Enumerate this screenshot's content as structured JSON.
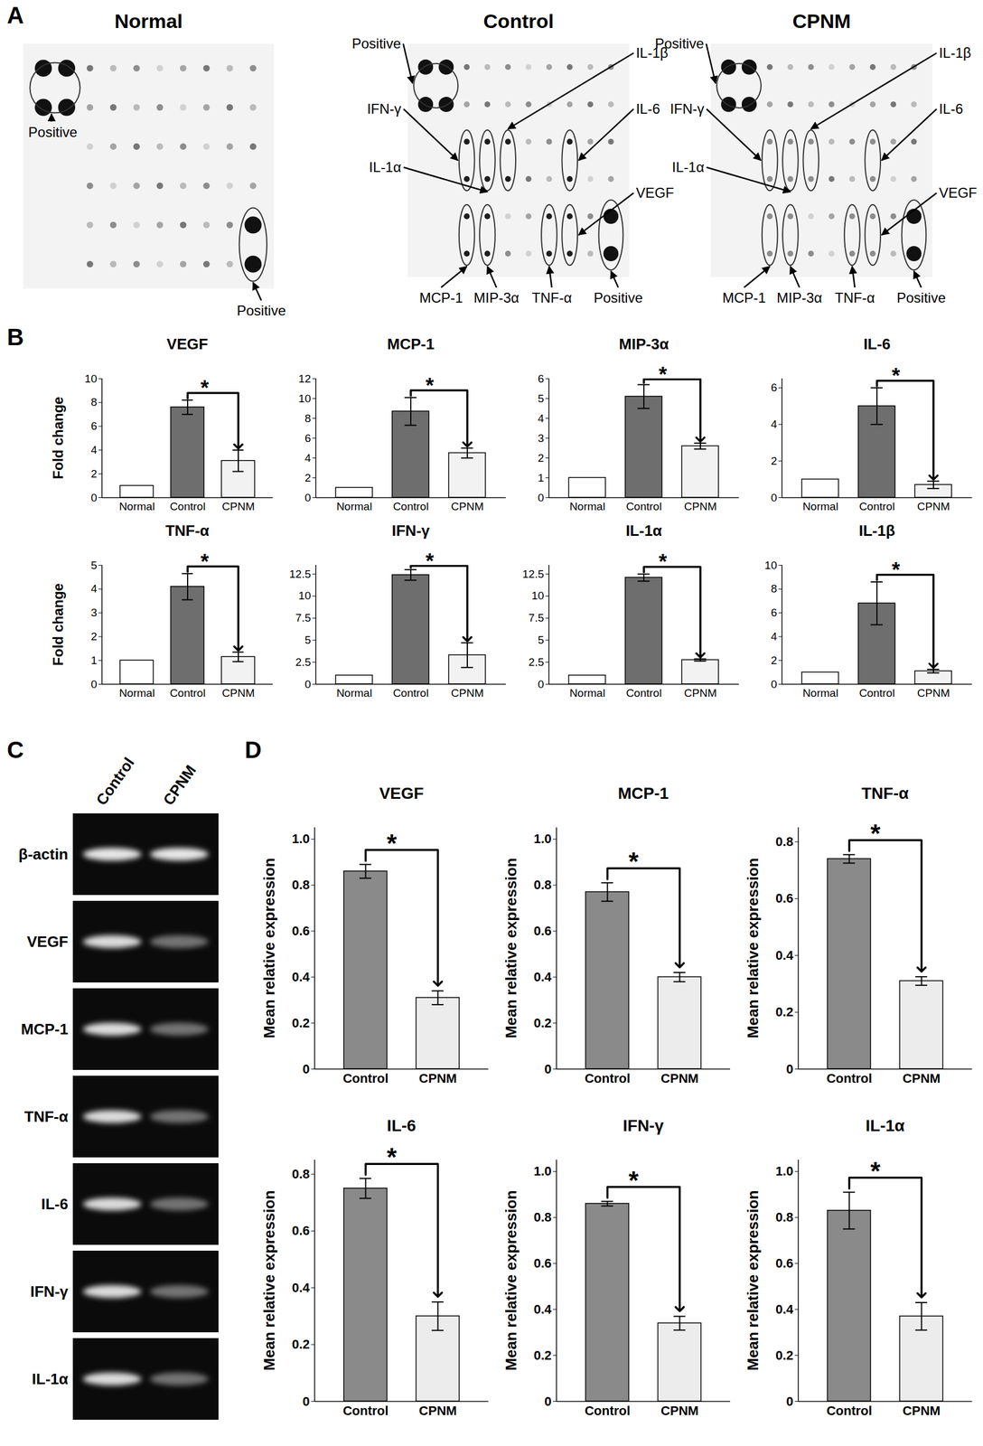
{
  "panel_labels": [
    "A",
    "B",
    "C",
    "D"
  ],
  "blots": [
    {
      "title": "Normal",
      "positive_label": "Positive",
      "targets": []
    },
    {
      "title": "Control",
      "positive_label": "Positive",
      "targets": [
        "IFN-γ",
        "IL-1α",
        "IL-1β",
        "IL-6",
        "VEGF",
        "MCP-1",
        "MIP-3α",
        "TNF-α"
      ]
    },
    {
      "title": "CPNM",
      "positive_label": "Positive",
      "targets": [
        "IFN-γ",
        "IL-1α",
        "IL-1β",
        "IL-6",
        "VEGF",
        "MCP-1",
        "MIP-3α",
        "TNF-α"
      ]
    }
  ],
  "gel": {
    "lanes": [
      "Control",
      "CPNM"
    ],
    "rows": [
      "β-actin",
      "VEGF",
      "MCP-1",
      "TNF-α",
      "IL-6",
      "IFN-γ",
      "IL-1α"
    ]
  },
  "chart_data": [
    {
      "type": "bar",
      "title": "VEGF",
      "y_label": "Fold change",
      "categories": [
        "Normal",
        "Control",
        "CPNM"
      ],
      "values": [
        1,
        7.6,
        3.1
      ],
      "errors": [
        0,
        0.6,
        0.9
      ],
      "colors": [
        "#ffffff",
        "#6e6e6e",
        "#f2f2f2"
      ],
      "ylim": [
        0,
        10
      ],
      "yticks": [
        0,
        2,
        4,
        6,
        8,
        10
      ],
      "significance": {
        "between": [
          "Control",
          "CPNM"
        ],
        "label": "*"
      }
    },
    {
      "type": "bar",
      "title": "MCP-1",
      "categories": [
        "Normal",
        "Control",
        "CPNM"
      ],
      "values": [
        1,
        8.7,
        4.5
      ],
      "errors": [
        0,
        1.4,
        0.5
      ],
      "colors": [
        "#ffffff",
        "#6e6e6e",
        "#f2f2f2"
      ],
      "ylim": [
        0,
        12
      ],
      "yticks": [
        0,
        2,
        4,
        6,
        8,
        10,
        12
      ],
      "significance": {
        "between": [
          "Control",
          "CPNM"
        ],
        "label": "*"
      }
    },
    {
      "type": "bar",
      "title": "MIP-3α",
      "categories": [
        "Normal",
        "Control",
        "CPNM"
      ],
      "values": [
        1,
        5.1,
        2.6
      ],
      "errors": [
        0,
        0.6,
        0.15
      ],
      "colors": [
        "#ffffff",
        "#6e6e6e",
        "#f2f2f2"
      ],
      "ylim": [
        0,
        6
      ],
      "yticks": [
        0,
        1,
        2,
        3,
        4,
        5,
        6
      ],
      "significance": {
        "between": [
          "Control",
          "CPNM"
        ],
        "label": "*"
      }
    },
    {
      "type": "bar",
      "title": "IL-6",
      "categories": [
        "Normal",
        "Control",
        "CPNM"
      ],
      "values": [
        1,
        5.0,
        0.7
      ],
      "errors": [
        0,
        1.0,
        0.2
      ],
      "colors": [
        "#ffffff",
        "#6e6e6e",
        "#f2f2f2"
      ],
      "ylim": [
        0,
        6.5
      ],
      "yticks": [
        0,
        2,
        4,
        6
      ],
      "significance": {
        "between": [
          "Control",
          "CPNM"
        ],
        "label": "*"
      }
    },
    {
      "type": "bar",
      "title": "TNF-α",
      "y_label": "Fold change",
      "categories": [
        "Normal",
        "Control",
        "CPNM"
      ],
      "values": [
        1,
        4.1,
        1.15
      ],
      "errors": [
        0,
        0.55,
        0.2
      ],
      "colors": [
        "#ffffff",
        "#6e6e6e",
        "#f2f2f2"
      ],
      "ylim": [
        0,
        5
      ],
      "yticks": [
        0,
        1,
        2,
        3,
        4,
        5
      ],
      "significance": {
        "between": [
          "Control",
          "CPNM"
        ],
        "label": "*"
      }
    },
    {
      "type": "bar",
      "title": "IFN-γ",
      "categories": [
        "Normal",
        "Control",
        "CPNM"
      ],
      "values": [
        1,
        12.4,
        3.3
      ],
      "errors": [
        0,
        0.6,
        1.4
      ],
      "colors": [
        "#ffffff",
        "#6e6e6e",
        "#f2f2f2"
      ],
      "ylim": [
        0,
        13.5
      ],
      "yticks": [
        0,
        2.5,
        5,
        7.5,
        10,
        12.5
      ],
      "significance": {
        "between": [
          "Control",
          "CPNM"
        ],
        "label": "*"
      }
    },
    {
      "type": "bar",
      "title": "IL-1α",
      "categories": [
        "Normal",
        "Control",
        "CPNM"
      ],
      "values": [
        1,
        12.1,
        2.75
      ],
      "errors": [
        0,
        0.4,
        0.12
      ],
      "colors": [
        "#ffffff",
        "#6e6e6e",
        "#f2f2f2"
      ],
      "ylim": [
        0,
        13.5
      ],
      "yticks": [
        0,
        2.5,
        5,
        7.5,
        10,
        12.5
      ],
      "significance": {
        "between": [
          "Control",
          "CPNM"
        ],
        "label": "*"
      }
    },
    {
      "type": "bar",
      "title": "IL-1β",
      "categories": [
        "Normal",
        "Control",
        "CPNM"
      ],
      "values": [
        1,
        6.8,
        1.1
      ],
      "errors": [
        0,
        1.8,
        0.15
      ],
      "colors": [
        "#ffffff",
        "#6e6e6e",
        "#f2f2f2"
      ],
      "ylim": [
        0,
        10
      ],
      "yticks": [
        0,
        2,
        4,
        6,
        8,
        10
      ],
      "significance": {
        "between": [
          "Control",
          "CPNM"
        ],
        "label": "*"
      }
    },
    {
      "type": "bar",
      "title": "VEGF",
      "y_label": "Mean relative expression",
      "categories": [
        "Control",
        "CPNM"
      ],
      "values": [
        0.86,
        0.31
      ],
      "errors": [
        0.03,
        0.03
      ],
      "colors": [
        "#8a8a8a",
        "#ececec"
      ],
      "ylim": [
        0,
        1.05
      ],
      "yticks": [
        0,
        0.2,
        0.4,
        0.6,
        0.8,
        {
          "value": 1,
          "label": "1.0"
        }
      ],
      "significance": {
        "between": [
          "Control",
          "CPNM"
        ],
        "label": "*"
      }
    },
    {
      "type": "bar",
      "title": "MCP-1",
      "y_label": "Mean relative expression",
      "categories": [
        "Control",
        "CPNM"
      ],
      "values": [
        0.77,
        0.4
      ],
      "errors": [
        0.04,
        0.02
      ],
      "colors": [
        "#8a8a8a",
        "#ececec"
      ],
      "ylim": [
        0,
        1.05
      ],
      "yticks": [
        0,
        0.2,
        0.4,
        0.6,
        0.8,
        {
          "value": 1,
          "label": "1.0"
        }
      ],
      "significance": {
        "between": [
          "Control",
          "CPNM"
        ],
        "label": "*"
      }
    },
    {
      "type": "bar",
      "title": "TNF-α",
      "y_label": "Mean relative expression",
      "categories": [
        "Control",
        "CPNM"
      ],
      "values": [
        0.74,
        0.31
      ],
      "errors": [
        0.015,
        0.015
      ],
      "colors": [
        "#8a8a8a",
        "#ececec"
      ],
      "ylim": [
        0,
        0.85
      ],
      "yticks": [
        0,
        0.2,
        0.4,
        0.6,
        0.8
      ],
      "significance": {
        "between": [
          "Control",
          "CPNM"
        ],
        "label": "*"
      }
    },
    {
      "type": "bar",
      "title": "IL-6",
      "y_label": "Mean relative expression",
      "categories": [
        "Control",
        "CPNM"
      ],
      "values": [
        0.75,
        0.3
      ],
      "errors": [
        0.035,
        0.05
      ],
      "colors": [
        "#8a8a8a",
        "#ececec"
      ],
      "ylim": [
        0,
        0.85
      ],
      "yticks": [
        0,
        0.2,
        0.4,
        0.6,
        0.8
      ],
      "significance": {
        "between": [
          "Control",
          "CPNM"
        ],
        "label": "*"
      }
    },
    {
      "type": "bar",
      "title": "IFN-γ",
      "y_label": "Mean relative expression",
      "categories": [
        "Control",
        "CPNM"
      ],
      "values": [
        0.86,
        0.34
      ],
      "errors": [
        0.01,
        0.03
      ],
      "colors": [
        "#8a8a8a",
        "#ececec"
      ],
      "ylim": [
        0,
        1.05
      ],
      "yticks": [
        0,
        0.2,
        0.4,
        0.6,
        0.8,
        {
          "value": 1,
          "label": "1.0"
        }
      ],
      "significance": {
        "between": [
          "Control",
          "CPNM"
        ],
        "label": "*"
      }
    },
    {
      "type": "bar",
      "title": "IL-1α",
      "y_label": "Mean relative expression",
      "categories": [
        "Control",
        "CPNM"
      ],
      "values": [
        0.83,
        0.37
      ],
      "errors": [
        0.08,
        0.06
      ],
      "colors": [
        "#8a8a8a",
        "#ececec"
      ],
      "ylim": [
        0,
        1.05
      ],
      "yticks": [
        0,
        0.2,
        0.4,
        0.6,
        0.8,
        {
          "value": 1,
          "label": "1.0"
        }
      ],
      "significance": {
        "between": [
          "Control",
          "CPNM"
        ],
        "label": "*"
      }
    }
  ]
}
